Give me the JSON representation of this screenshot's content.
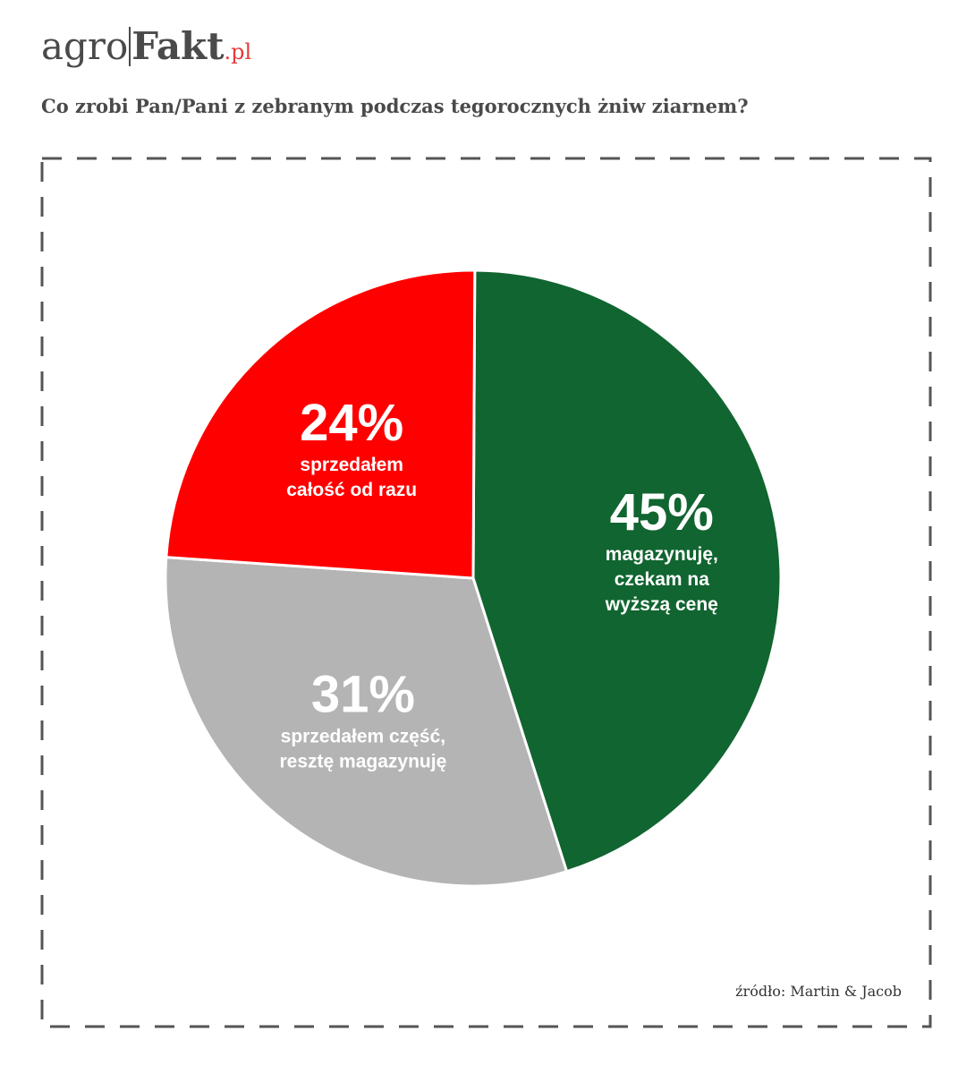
{
  "logo": {
    "part1": "agro",
    "part2": "Fakt",
    "part3": ".pl"
  },
  "title": "Co zrobi Pan/Pani z zebranym podczas tegorocznych żniw ziarnem?",
  "source": "źródło: Martin & Jacob",
  "chart_data": {
    "type": "pie",
    "slices": [
      {
        "value": 45,
        "percent_label": "45%",
        "label_lines": [
          "magazynuję,",
          "czekam na",
          "wyższą cenę"
        ],
        "color": "#116530"
      },
      {
        "value": 31,
        "percent_label": "31%",
        "label_lines": [
          "sprzedałem część,",
          "resztę magazynuję"
        ],
        "color": "#b4b4b4"
      },
      {
        "value": 24,
        "percent_label": "24%",
        "label_lines": [
          "sprzedałem",
          "całość od razu"
        ],
        "color": "#fe0000"
      }
    ]
  }
}
